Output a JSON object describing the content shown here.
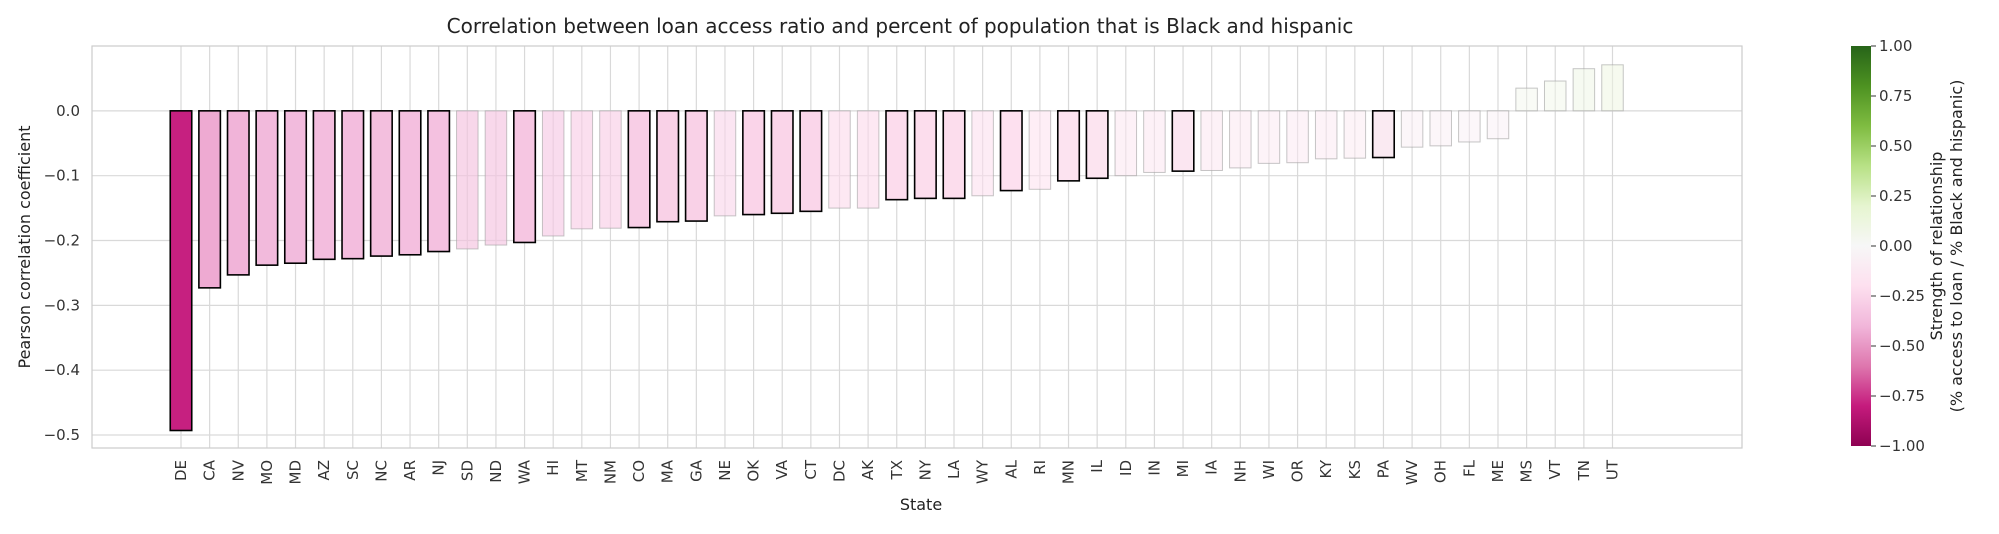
{
  "chart_data": {
    "type": "bar",
    "title": "Correlation between loan access ratio and percent of population that is Black and hispanic",
    "xlabel": "State",
    "ylabel": "Pearson correlation coefficient",
    "ylim": [
      -0.52,
      0.1
    ],
    "yticks": [
      0.0,
      -0.1,
      -0.2,
      -0.3,
      -0.4,
      -0.5
    ],
    "ytick_labels": [
      "0.0",
      "−0.1",
      "−0.2",
      "−0.3",
      "−0.4",
      "−0.5"
    ],
    "grid": true,
    "categories": [
      "DE",
      "CA",
      "NV",
      "MO",
      "MD",
      "AZ",
      "SC",
      "NC",
      "AR",
      "NJ",
      "SD",
      "ND",
      "WA",
      "HI",
      "MT",
      "NM",
      "CO",
      "MA",
      "GA",
      "NE",
      "OK",
      "VA",
      "CT",
      "DC",
      "AK",
      "TX",
      "NY",
      "LA",
      "WY",
      "AL",
      "RI",
      "MN",
      "IL",
      "ID",
      "IN",
      "MI",
      "IA",
      "NH",
      "WI",
      "OR",
      "KY",
      "KS",
      "PA",
      "WV",
      "OH",
      "FL",
      "ME",
      "MS",
      "VT",
      "TN",
      "UT"
    ],
    "values": [
      -0.493,
      -0.273,
      -0.253,
      -0.238,
      -0.235,
      -0.229,
      -0.228,
      -0.224,
      -0.222,
      -0.217,
      -0.213,
      -0.207,
      -0.203,
      -0.193,
      -0.182,
      -0.181,
      -0.18,
      -0.171,
      -0.17,
      -0.162,
      -0.16,
      -0.158,
      -0.155,
      -0.15,
      -0.15,
      -0.137,
      -0.135,
      -0.135,
      -0.131,
      -0.123,
      -0.121,
      -0.108,
      -0.104,
      -0.1,
      -0.095,
      -0.093,
      -0.092,
      -0.088,
      -0.081,
      -0.08,
      -0.074,
      -0.073,
      -0.072,
      -0.056,
      -0.054,
      -0.048,
      -0.043,
      0.035,
      0.046,
      0.065,
      0.071
    ],
    "outlined": [
      true,
      true,
      true,
      true,
      true,
      true,
      true,
      true,
      true,
      true,
      false,
      false,
      true,
      false,
      false,
      false,
      true,
      true,
      true,
      false,
      true,
      true,
      true,
      false,
      false,
      true,
      true,
      true,
      false,
      true,
      false,
      true,
      true,
      false,
      false,
      true,
      false,
      false,
      false,
      false,
      false,
      false,
      true,
      false,
      false,
      false,
      false,
      false,
      false,
      false,
      false
    ],
    "colorbar": {
      "label_line1": "Strength of relationship",
      "label_line2": "(% access to loan / % Black and hispanic)",
      "ticks": [
        1.0,
        0.75,
        0.5,
        0.25,
        0.0,
        -0.25,
        -0.5,
        -0.75,
        -1.0
      ],
      "tick_labels": [
        "1.00",
        "0.75",
        "0.50",
        "0.25",
        "0.00",
        "−0.25",
        "−0.50",
        "−0.75",
        "−1.00"
      ],
      "colormap": "PiYG",
      "range": [
        -1.0,
        1.0
      ]
    },
    "colors": {
      "grid": "#d9d9d9",
      "spine": "#cccccc",
      "outline_strong": "#000000",
      "outline_faint": "#a0a0a0"
    }
  }
}
